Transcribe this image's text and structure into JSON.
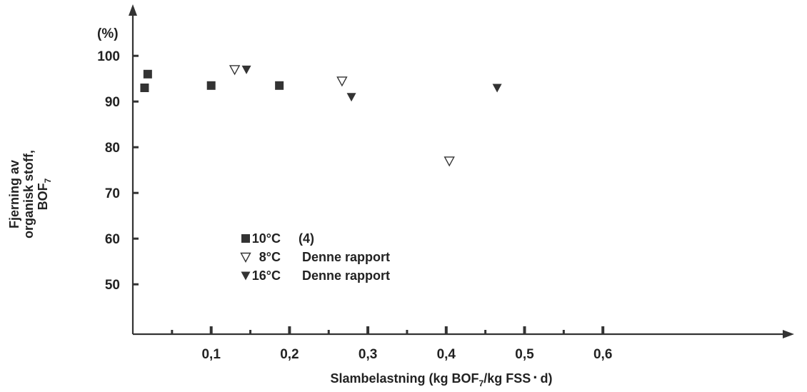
{
  "chart_data": {
    "type": "scatter",
    "title": "",
    "ylabel_unit": "(%)",
    "ylabel_lines": [
      "Fjerning av",
      "organisk stoff,",
      "BOF"
    ],
    "ylabel_subscript": "7",
    "xlabel_parts": {
      "pre": "Slambelastning (kg BOF",
      "sub1": "7",
      "mid": "/kg FSS",
      "dot": "·",
      "post": "d)"
    },
    "x_ticks": [
      "0,1",
      "0,2",
      "0,3",
      "0,4",
      "0,5",
      "0,6"
    ],
    "x_tick_values": [
      0.1,
      0.2,
      0.3,
      0.4,
      0.5,
      0.6
    ],
    "x_minor_ticks": [
      0.05,
      0.15,
      0.25,
      0.35,
      0.45,
      0.55
    ],
    "y_ticks": [
      "50",
      "60",
      "70",
      "80",
      "90",
      "100"
    ],
    "y_tick_values": [
      50,
      60,
      70,
      80,
      90,
      100
    ],
    "xlim": [
      0,
      0.7
    ],
    "ylim": [
      40,
      105
    ],
    "grid": false,
    "legend_position": "center-left",
    "series": [
      {
        "temp": "10°C",
        "note": "(4)",
        "marker": "square",
        "color": "#333333",
        "points": [
          [
            0.015,
            93
          ],
          [
            0.019,
            96
          ],
          [
            0.1,
            93.5
          ],
          [
            0.187,
            93.5
          ]
        ]
      },
      {
        "temp": "8°C",
        "note": "Denne rapport",
        "marker": "triangle-down-open",
        "color": "#333333",
        "points": [
          [
            0.13,
            97
          ],
          [
            0.267,
            94.5
          ],
          [
            0.404,
            77
          ]
        ]
      },
      {
        "temp": "16°C",
        "note": "Denne rapport",
        "marker": "triangle-down-filled",
        "color": "#333333",
        "points": [
          [
            0.145,
            97
          ],
          [
            0.279,
            91
          ],
          [
            0.465,
            93
          ]
        ]
      }
    ]
  }
}
